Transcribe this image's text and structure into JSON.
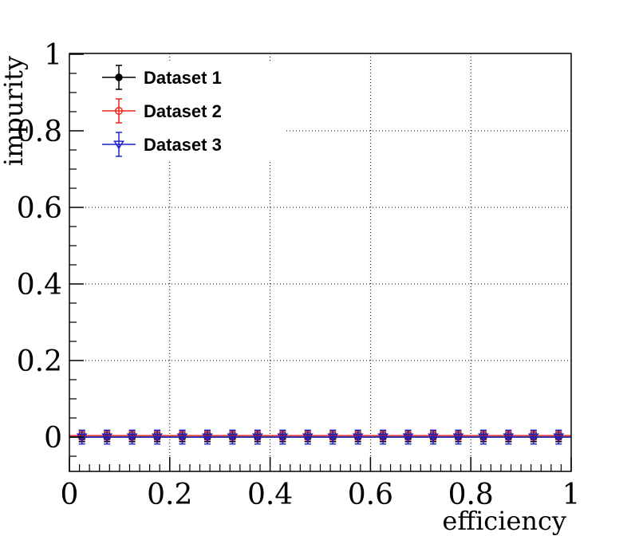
{
  "chart_data": {
    "type": "scatter",
    "title": "",
    "xlabel": "efficiency",
    "ylabel": "impurity",
    "xlim": [
      0,
      1
    ],
    "ylim": [
      -0.09,
      1
    ],
    "grid": true,
    "legend_position": "top-left",
    "x_ticks": [
      "0",
      "0.2",
      "0.4",
      "0.6",
      "0.8",
      "1"
    ],
    "y_ticks": [
      "0",
      "0.2",
      "0.4",
      "0.6",
      "0.8",
      "1"
    ],
    "x": [
      0.025,
      0.075,
      0.125,
      0.175,
      0.225,
      0.275,
      0.325,
      0.375,
      0.425,
      0.475,
      0.525,
      0.575,
      0.625,
      0.675,
      0.725,
      0.775,
      0.825,
      0.875,
      0.925,
      0.975
    ],
    "series": [
      {
        "name": "Dataset 1",
        "color": "#000000",
        "marker": "filled-circle",
        "values": [
          0,
          0,
          0,
          0,
          0,
          0,
          0,
          0,
          0,
          0,
          0,
          0,
          0,
          0,
          0,
          0,
          0,
          0,
          0,
          0
        ],
        "yerr": 0.012
      },
      {
        "name": "Dataset 2",
        "color": "#e8241c",
        "marker": "open-circle",
        "values": [
          0.004,
          0.004,
          0.004,
          0.004,
          0.004,
          0.004,
          0.004,
          0.004,
          0.004,
          0.004,
          0.004,
          0.004,
          0.004,
          0.004,
          0.004,
          0.004,
          0.004,
          0.004,
          0.004,
          0.004
        ],
        "yerr": 0.012
      },
      {
        "name": "Dataset 3",
        "color": "#1c24c8",
        "marker": "open-triangle-down",
        "values": [
          0,
          0,
          0,
          0,
          0,
          0,
          0,
          0,
          0,
          0,
          0,
          0,
          0,
          0,
          0,
          0,
          0,
          0,
          0,
          0
        ],
        "yerr": 0.018
      }
    ]
  }
}
